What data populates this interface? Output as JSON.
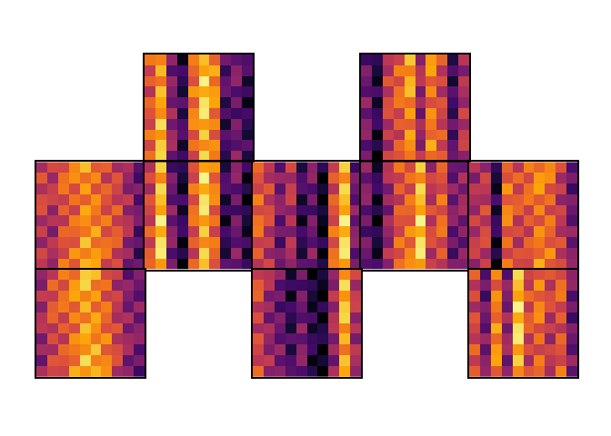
{
  "chart_data": {
    "type": "heatmap",
    "color": "inferno",
    "zlim": [
      0,
      100
    ],
    "tick_labels": false,
    "panels": [
      [
        null,
        [
          [
            70,
            72,
            39,
            3,
            71,
            85,
            64,
            32,
            26,
            23
          ],
          [
            52,
            84,
            23,
            21,
            65,
            79,
            82,
            16,
            38,
            25
          ],
          [
            64,
            68,
            41,
            15,
            59,
            97,
            66,
            28,
            40,
            7
          ],
          [
            48,
            86,
            35,
            9,
            77,
            81,
            78,
            30,
            22,
            19
          ],
          [
            66,
            80,
            29,
            27,
            61,
            93,
            80,
            12,
            34,
            3
          ],
          [
            60,
            74,
            47,
            11,
            73,
            95,
            62,
            24,
            18,
            21
          ],
          [
            54,
            92,
            31,
            23,
            75,
            77,
            74,
            8,
            36,
            15
          ],
          [
            72,
            76,
            43,
            25,
            57,
            89,
            58,
            26,
            30,
            9
          ],
          [
            56,
            88,
            45,
            7,
            69,
            73,
            76,
            20,
            24,
            27
          ],
          [
            68,
            90,
            27,
            19,
            53,
            91,
            70,
            14,
            42,
            11
          ]
        ],
        null,
        [
          [
            18,
            16,
            50,
            54,
            87,
            36,
            78,
            65,
            12,
            49
          ],
          [
            36,
            10,
            44,
            72,
            71,
            48,
            80,
            47,
            24,
            33
          ],
          [
            30,
            4,
            62,
            56,
            83,
            50,
            62,
            59,
            8,
            51
          ],
          [
            24,
            22,
            46,
            68,
            85,
            32,
            74,
            43,
            26,
            45
          ],
          [
            42,
            6,
            58,
            70,
            67,
            44,
            58,
            61,
            20,
            39
          ],
          [
            26,
            18,
            60,
            52,
            79,
            28,
            76,
            55,
            14,
            57
          ],
          [
            38,
            20,
            42,
            64,
            63,
            46,
            70,
            49,
            32,
            41
          ],
          [
            40,
            2,
            54,
            48,
            81,
            40,
            64,
            67,
            16,
            53
          ],
          [
            22,
            14,
            38,
            66,
            75,
            34,
            82,
            51,
            28,
            55
          ],
          [
            34,
            0,
            56,
            60,
            69,
            52,
            66,
            63,
            30,
            37
          ]
        ],
        null
      ],
      [
        [
          [
            44,
            57,
            56,
            73,
            85,
            62,
            64,
            43,
            46,
            25
          ],
          [
            62,
            41,
            68,
            75,
            67,
            74,
            48,
            61,
            40,
            19
          ],
          [
            46,
            53,
            70,
            57,
            79,
            58,
            66,
            55,
            34,
            37
          ],
          [
            58,
            55,
            52,
            69,
            63,
            76,
            60,
            49,
            52,
            21
          ],
          [
            60,
            37,
            64,
            53,
            81,
            70,
            54,
            67,
            36,
            33
          ],
          [
            42,
            49,
            48,
            71,
            75,
            64,
            72,
            51,
            48,
            35
          ],
          [
            54,
            33,
            66,
            65,
            69,
            82,
            56,
            63,
            50,
            17
          ],
          [
            38,
            51,
            60,
            59,
            87,
            66,
            68,
            65,
            32,
            29
          ],
          [
            56,
            45,
            54,
            77,
            71,
            78,
            70,
            47,
            44,
            13
          ],
          [
            50,
            39,
            72,
            61,
            83,
            80,
            52,
            59,
            28,
            31
          ]
        ],
        [
          [
            47,
            89,
            18,
            16,
            60,
            79,
            77,
            11,
            38,
            20
          ],
          [
            59,
            73,
            36,
            10,
            54,
            97,
            61,
            23,
            40,
            2
          ],
          [
            43,
            91,
            30,
            4,
            72,
            81,
            73,
            25,
            22,
            14
          ],
          [
            61,
            85,
            24,
            22,
            56,
            93,
            75,
            7,
            34,
            0
          ],
          [
            55,
            79,
            42,
            6,
            68,
            95,
            57,
            19,
            18,
            16
          ],
          [
            49,
            97,
            26,
            18,
            70,
            77,
            69,
            3,
            36,
            10
          ],
          [
            67,
            81,
            38,
            20,
            52,
            89,
            53,
            21,
            30,
            4
          ],
          [
            51,
            93,
            40,
            2,
            64,
            73,
            71,
            15,
            24,
            22
          ],
          [
            63,
            95,
            22,
            14,
            48,
            91,
            65,
            9,
            42,
            6
          ],
          [
            65,
            77,
            34,
            0,
            66,
            85,
            59,
            27,
            26,
            18
          ]
        ],
        [
          [
            66,
            50,
            24,
            57,
            11,
            38,
            15,
            52,
            89,
            18
          ],
          [
            60,
            44,
            42,
            41,
            23,
            40,
            0,
            64,
            73,
            36
          ],
          [
            54,
            62,
            26,
            53,
            25,
            22,
            9,
            48,
            91,
            30
          ],
          [
            72,
            46,
            38,
            55,
            7,
            34,
            0,
            66,
            85,
            24
          ],
          [
            56,
            58,
            40,
            37,
            19,
            18,
            11,
            60,
            79,
            42
          ],
          [
            68,
            60,
            22,
            49,
            3,
            36,
            5,
            54,
            97,
            26
          ],
          [
            70,
            42,
            34,
            33,
            21,
            30,
            0,
            72,
            81,
            38
          ],
          [
            52,
            54,
            18,
            51,
            15,
            24,
            17,
            56,
            93,
            40
          ],
          [
            64,
            38,
            36,
            45,
            9,
            42,
            1,
            68,
            95,
            22
          ],
          [
            48,
            56,
            30,
            39,
            27,
            26,
            13,
            70,
            77,
            34
          ]
        ],
        [
          [
            42,
            6,
            48,
            70,
            57,
            89,
            38,
            66,
            30,
            29
          ],
          [
            26,
            18,
            50,
            52,
            69,
            73,
            56,
            60,
            24,
            47
          ],
          [
            38,
            20,
            32,
            64,
            53,
            91,
            50,
            54,
            42,
            31
          ],
          [
            40,
            2,
            44,
            48,
            71,
            85,
            44,
            72,
            26,
            43
          ],
          [
            22,
            14,
            28,
            66,
            65,
            79,
            62,
            56,
            38,
            45
          ],
          [
            34,
            0,
            46,
            60,
            59,
            97,
            46,
            68,
            40,
            27
          ],
          [
            18,
            16,
            40,
            54,
            77,
            81,
            58,
            70,
            22,
            39
          ],
          [
            36,
            10,
            34,
            72,
            61,
            93,
            60,
            52,
            34,
            23
          ],
          [
            30,
            4,
            52,
            56,
            73,
            95,
            42,
            64,
            18,
            41
          ],
          [
            24,
            22,
            36,
            68,
            75,
            77,
            54,
            48,
            36,
            35
          ]
        ],
        [
          [
            49,
            38,
            16,
            65,
            49,
            72,
            66,
            73,
            60,
            22
          ],
          [
            33,
            56,
            10,
            59,
            67,
            56,
            78,
            75,
            42,
            34
          ],
          [
            51,
            50,
            4,
            77,
            51,
            68,
            80,
            57,
            54,
            18
          ],
          [
            45,
            44,
            22,
            61,
            63,
            70,
            62,
            69,
            38,
            36
          ],
          [
            39,
            62,
            6,
            73,
            65,
            52,
            74,
            53,
            56,
            30
          ],
          [
            57,
            46,
            18,
            75,
            47,
            64,
            58,
            71,
            50,
            24
          ],
          [
            41,
            58,
            20,
            57,
            59,
            48,
            76,
            65,
            44,
            42
          ],
          [
            53,
            60,
            2,
            69,
            43,
            66,
            70,
            59,
            62,
            26
          ],
          [
            55,
            42,
            14,
            53,
            61,
            60,
            64,
            77,
            46,
            38
          ],
          [
            37,
            54,
            0,
            71,
            55,
            54,
            82,
            61,
            58,
            40
          ]
        ]
      ],
      [
        [
          [
            40,
            49,
            72,
            66,
            88,
            85,
            57,
            54,
            23,
            36
          ],
          [
            34,
            67,
            56,
            78,
            90,
            67,
            69,
            38,
            41,
            30
          ],
          [
            52,
            51,
            68,
            80,
            72,
            79,
            53,
            56,
            35,
            24
          ],
          [
            36,
            63,
            70,
            62,
            84,
            63,
            71,
            50,
            29,
            42
          ],
          [
            48,
            65,
            52,
            74,
            68,
            81,
            65,
            44,
            47,
            26
          ],
          [
            50,
            47,
            64,
            58,
            86,
            75,
            59,
            62,
            31,
            38
          ],
          [
            32,
            59,
            48,
            76,
            80,
            69,
            77,
            46,
            43,
            40
          ],
          [
            44,
            43,
            66,
            70,
            74,
            87,
            61,
            58,
            45,
            22
          ],
          [
            28,
            61,
            60,
            64,
            92,
            71,
            73,
            60,
            27,
            34
          ],
          [
            46,
            55,
            54,
            82,
            76,
            83,
            75,
            42,
            39,
            18
          ]
        ],
        null,
        [
          [
            51,
            48,
            40,
            7,
            34,
            0,
            11,
            40,
            74,
            57
          ],
          [
            63,
            50,
            22,
            19,
            18,
            16,
            5,
            34,
            92,
            41
          ],
          [
            65,
            32,
            34,
            3,
            36,
            10,
            0,
            52,
            76,
            53
          ],
          [
            47,
            44,
            18,
            21,
            30,
            4,
            17,
            36,
            88,
            55
          ],
          [
            59,
            28,
            36,
            15,
            24,
            22,
            1,
            48,
            90,
            37
          ],
          [
            43,
            46,
            30,
            9,
            42,
            6,
            13,
            50,
            72,
            49
          ],
          [
            61,
            40,
            24,
            27,
            26,
            18,
            15,
            32,
            84,
            33
          ],
          [
            55,
            34,
            42,
            11,
            38,
            20,
            0,
            44,
            68,
            51
          ],
          [
            49,
            52,
            26,
            23,
            40,
            2,
            9,
            28,
            86,
            45
          ],
          [
            67,
            36,
            38,
            25,
            22,
            14,
            0,
            46,
            80,
            39
          ]
        ],
        null,
        [
          [
            65,
            22,
            74,
            23,
            91,
            55,
            59,
            62,
            56,
            38
          ],
          [
            47,
            34,
            58,
            41,
            85,
            49,
            77,
            46,
            68,
            40
          ],
          [
            59,
            18,
            76,
            35,
            79,
            67,
            61,
            58,
            70,
            22
          ],
          [
            43,
            36,
            70,
            29,
            97,
            51,
            73,
            60,
            52,
            34
          ],
          [
            61,
            30,
            64,
            47,
            81,
            63,
            75,
            42,
            64,
            18
          ],
          [
            55,
            24,
            82,
            31,
            93,
            65,
            57,
            54,
            48,
            36
          ],
          [
            49,
            42,
            66,
            43,
            95,
            47,
            69,
            38,
            66,
            30
          ],
          [
            67,
            26,
            78,
            45,
            77,
            59,
            53,
            56,
            60,
            24
          ],
          [
            51,
            38,
            80,
            27,
            89,
            43,
            71,
            50,
            54,
            42
          ],
          [
            63,
            40,
            62,
            39,
            73,
            61,
            65,
            44,
            72,
            26
          ]
        ]
      ]
    ]
  }
}
